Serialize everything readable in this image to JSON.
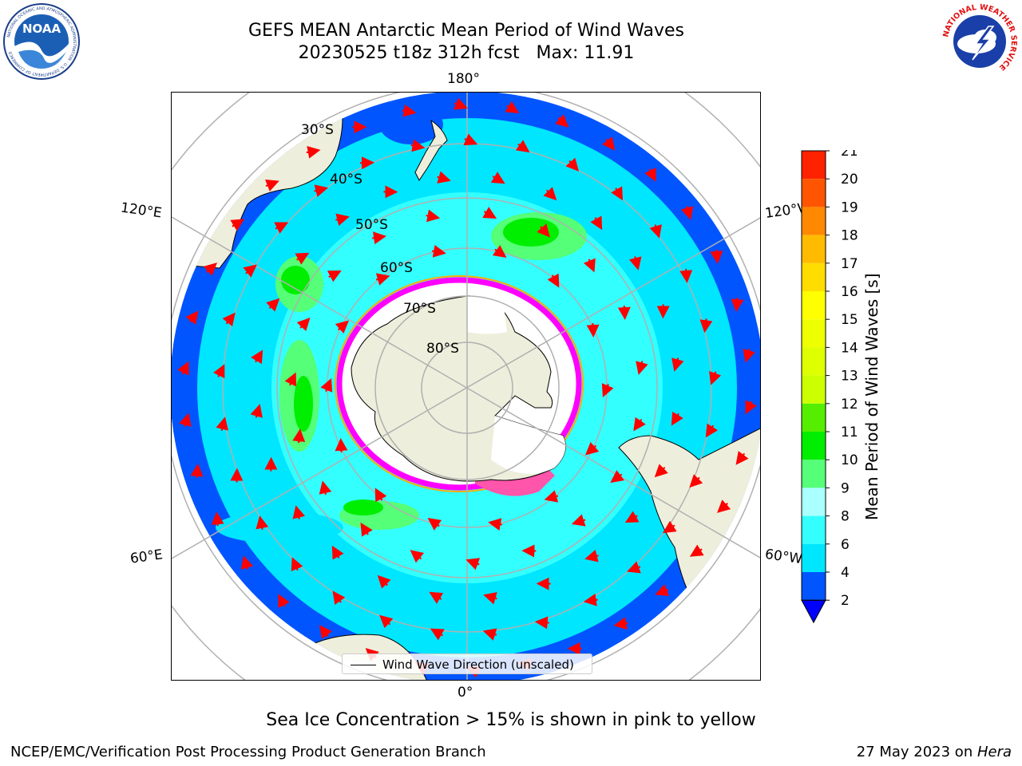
{
  "title": {
    "line1": "GEFS MEAN Antarctic Mean Period of Wind Waves",
    "line2": "20230525 t18z 312h fcst   Max: 11.91"
  },
  "map": {
    "projection": "south-polar-stereographic",
    "longitude_labels": [
      "180°",
      "120°E",
      "120°W",
      "60°E",
      "60°W",
      "0°"
    ],
    "latitude_labels": [
      "30°S",
      "40°S",
      "50°S",
      "60°S",
      "70°S",
      "80°S"
    ],
    "legend_label": "Wind Wave Direction (unscaled)",
    "land_color": "#eeeedc",
    "ice_colors": [
      "#ff00ff",
      "#ffaa00",
      "#ffff00"
    ],
    "arrow_color": "#ff0000"
  },
  "colorbar": {
    "label": "Mean Period of Wind Waves [s]",
    "ticks": [
      "2",
      "4",
      "6",
      "8",
      "9",
      "10",
      "11",
      "12",
      "13",
      "14",
      "15",
      "16",
      "17",
      "18",
      "19",
      "20",
      "21"
    ],
    "colors": [
      "#0055ff",
      "#00e6ff",
      "#33ffff",
      "#aaffff",
      "#55ff77",
      "#00ee00",
      "#55ee00",
      "#ccff00",
      "#ddff00",
      "#eeff00",
      "#ffff00",
      "#ffdd00",
      "#ffbb00",
      "#ff8800",
      "#ff5500",
      "#ff2200"
    ],
    "under_color": "#0000ff"
  },
  "caption": "Sea Ice Concentration > 15% is shown in pink to yellow",
  "footer": {
    "left": "NCEP/EMC/Verification Post Processing Product Generation Branch",
    "right_date": "27 May 2023 on ",
    "right_host": "Hera"
  },
  "logos": {
    "noaa": {
      "text": "NOAA",
      "ring": "NATIONAL OCEANIC AND ATMOSPHERIC ADMINISTRATION · U.S. DEPARTMENT OF COMMERCE"
    },
    "nws": {
      "ring": "NATIONAL WEATHER SERVICE"
    }
  }
}
